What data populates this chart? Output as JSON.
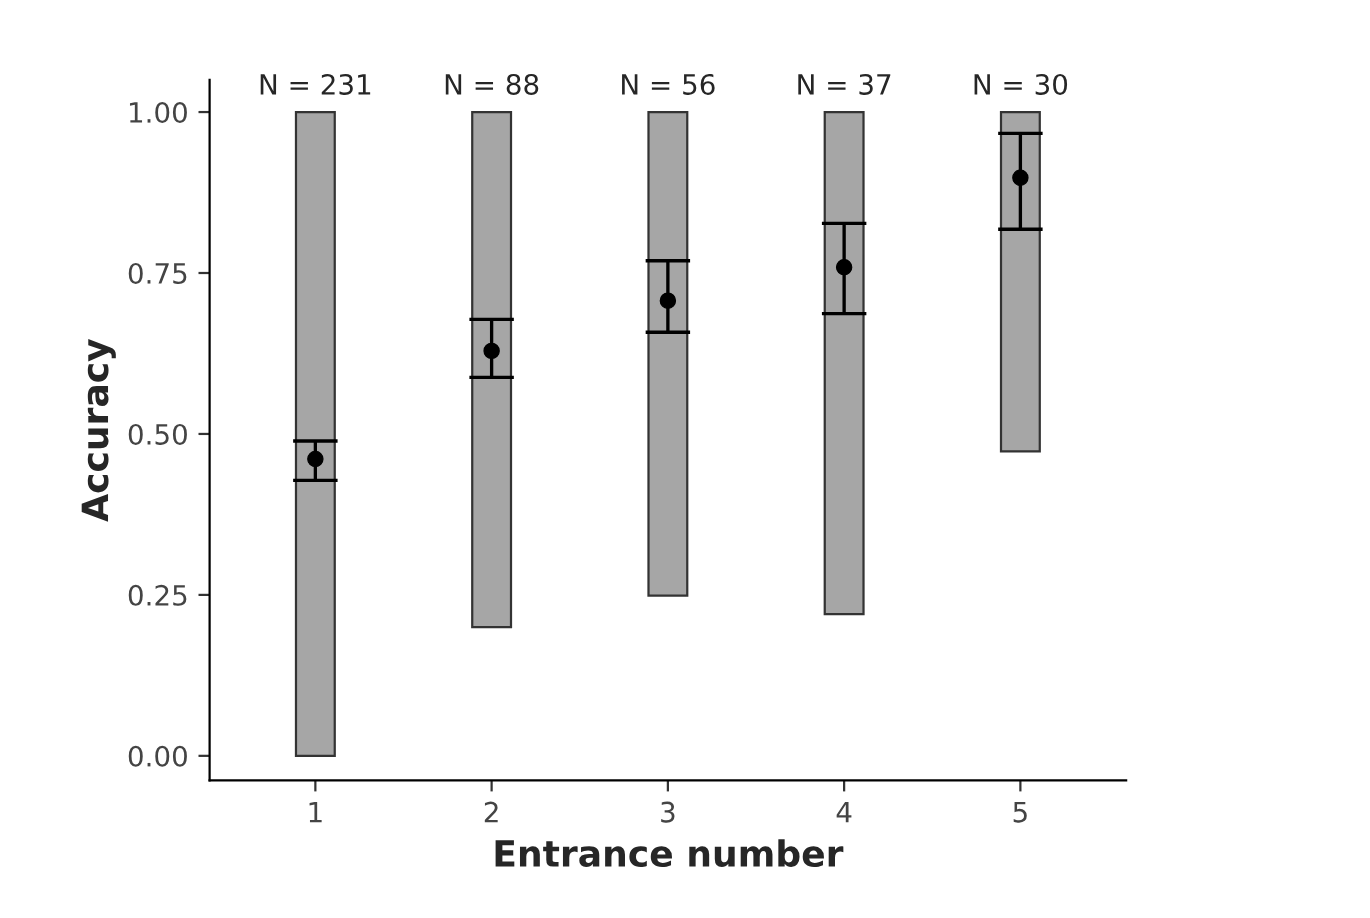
{
  "chart_data": {
    "type": "bar",
    "xlabel": "Entrance number",
    "ylabel": "Accuracy",
    "categories": [
      "1",
      "2",
      "3",
      "4",
      "5"
    ],
    "series": [
      {
        "color": "#a6a6a6",
        "base": [
          0.0,
          0.2,
          0.249,
          0.22,
          0.473
        ],
        "values": [
          1.0,
          0.8,
          0.751,
          0.78,
          0.527
        ]
      },
      {
        "type": "scatter",
        "color": "#000000",
        "values": [
          0.461,
          0.629,
          0.707,
          0.759,
          0.898
        ],
        "errors": [
          [
            0.428,
            0.489
          ],
          [
            0.588,
            0.678
          ],
          [
            0.658,
            0.769
          ],
          [
            0.687,
            0.827
          ],
          [
            0.818,
            0.967
          ]
        ]
      }
    ],
    "annotations": [
      "N = 231",
      "N = 88",
      "N = 56",
      "N = 37",
      "N = 30"
    ],
    "ylim": [
      -0.038,
      1.05
    ],
    "yticks": [
      {
        "value": 0,
        "label": "0.00"
      },
      {
        "value": 0.25,
        "label": "0.25"
      },
      {
        "value": 0.5,
        "label": "0.50"
      },
      {
        "value": 0.75,
        "label": "0.75"
      },
      {
        "value": 1.0,
        "label": "1.00"
      }
    ],
    "grid": false,
    "legend": false,
    "marker": "circle"
  }
}
